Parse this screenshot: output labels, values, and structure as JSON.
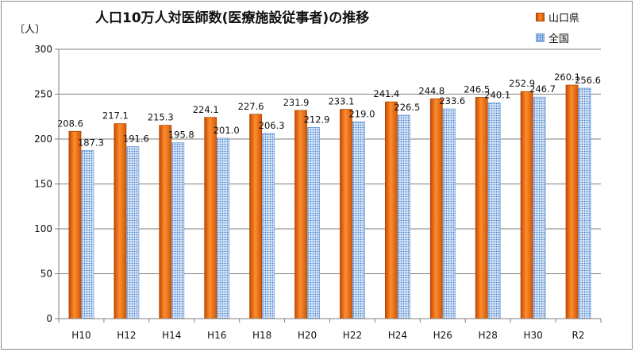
{
  "chart_data": {
    "type": "bar",
    "title": "人口10万人対医師数(医療施設従事者)の推移",
    "unit_label": "〔人〕",
    "categories": [
      "H10",
      "H12",
      "H14",
      "H16",
      "H18",
      "H20",
      "H22",
      "H24",
      "H26",
      "H28",
      "H30",
      "R2"
    ],
    "series": [
      {
        "name": "山口県",
        "values": [
          208.6,
          217.1,
          215.3,
          224.1,
          227.6,
          231.9,
          233.1,
          241.4,
          244.8,
          246.5,
          252.9,
          260.1
        ],
        "color": "#f07a1a"
      },
      {
        "name": "全国",
        "values": [
          187.3,
          191.6,
          195.8,
          201.0,
          206.3,
          212.9,
          219.0,
          226.5,
          233.6,
          240.1,
          246.7,
          256.6
        ],
        "color": "#6fa0dc"
      }
    ],
    "ylim": [
      0,
      300
    ],
    "yticks": [
      "0",
      "50",
      "100",
      "150",
      "200",
      "250",
      "300"
    ],
    "grid": true,
    "legend_position": "top-right"
  }
}
